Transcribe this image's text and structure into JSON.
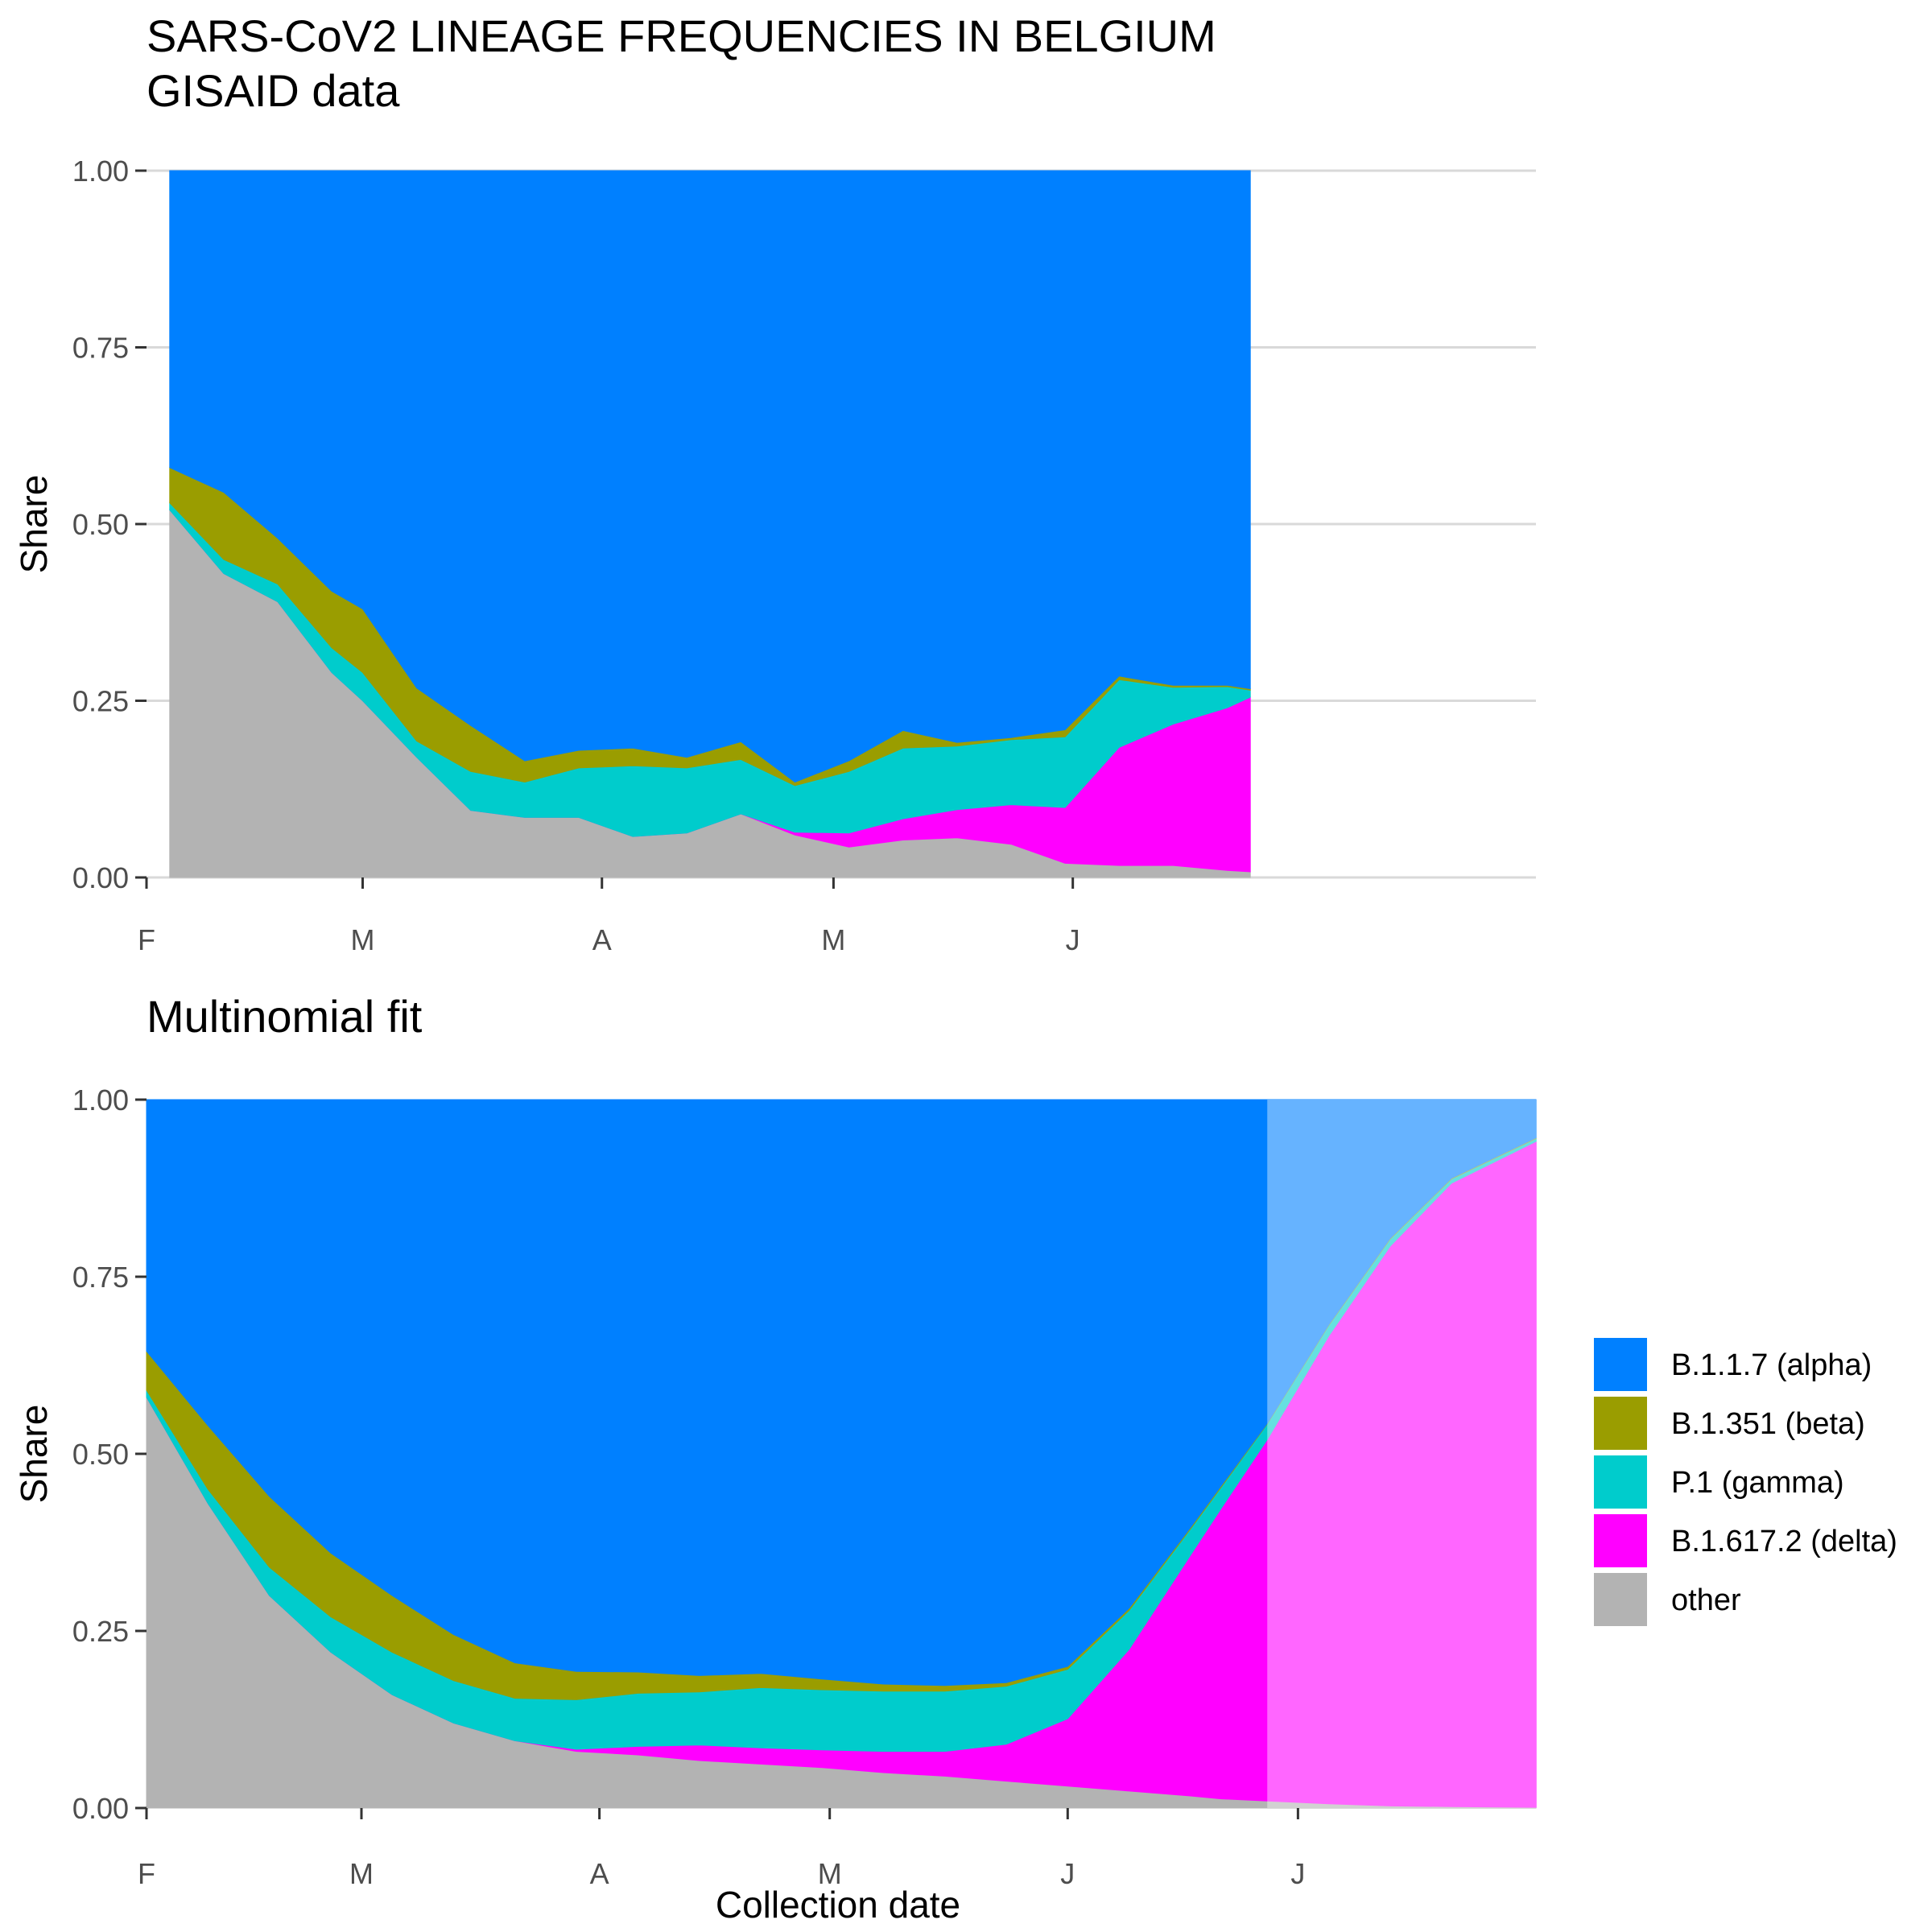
{
  "title": "SARS-CoV2 LINEAGE FREQUENCIES IN BELGIUM",
  "subtitle": "GISAID data",
  "legend": {
    "items": [
      {
        "label": "B.1.1.7 (alpha)",
        "color": "#0080FF"
      },
      {
        "label": "B.1.351 (beta)",
        "color": "#9A9D00"
      },
      {
        "label": "P.1 (gamma)",
        "color": "#00CCCC"
      },
      {
        "label": "B.1.617.2 (delta)",
        "color": "#FF00FF"
      },
      {
        "label": "other",
        "color": "#B3B3B3"
      }
    ]
  },
  "chart_data": [
    {
      "type": "area",
      "stacking": "fill",
      "title": "",
      "xlabel": "",
      "ylabel": "Share",
      "x_unit": "day of 2021",
      "xlim": [
        32,
        212
      ],
      "ylim": [
        0,
        1
      ],
      "y_ticks": [
        "0.00",
        "0.25",
        "0.50",
        "0.75",
        "1.00"
      ],
      "x_ticks": [
        {
          "value": 32,
          "label": "F"
        },
        {
          "value": 60,
          "label": "M"
        },
        {
          "value": 91,
          "label": "A"
        },
        {
          "value": 121,
          "label": "M"
        },
        {
          "value": 152,
          "label": "J"
        }
      ],
      "grid": true,
      "x": [
        35,
        42,
        49,
        56,
        60,
        67,
        74,
        81,
        88,
        95,
        102,
        109,
        116,
        123,
        130,
        137,
        144,
        151,
        158,
        165,
        172,
        175
      ],
      "series": [
        {
          "name": "other",
          "color": "#B3B3B3",
          "values": [
            0.52,
            0.43,
            0.39,
            0.29,
            0.25,
            0.17,
            0.095,
            0.085,
            0.085,
            0.058,
            0.063,
            0.09,
            0.06,
            0.043,
            0.053,
            0.056,
            0.047,
            0.02,
            0.017,
            0.017,
            0.01,
            0.008
          ]
        },
        {
          "name": "B.1.617.2 (delta)",
          "color": "#FF00FF",
          "values": [
            0,
            0,
            0,
            0,
            0,
            0,
            0,
            0,
            0,
            0,
            0,
            0,
            0.004,
            0.02,
            0.03,
            0.04,
            0.056,
            0.079,
            0.167,
            0.2,
            0.23,
            0.247
          ]
        },
        {
          "name": "P.1 (gamma)",
          "color": "#00CCCC",
          "values": [
            0.01,
            0.02,
            0.025,
            0.035,
            0.04,
            0.023,
            0.055,
            0.05,
            0.07,
            0.1,
            0.092,
            0.077,
            0.066,
            0.087,
            0.1,
            0.09,
            0.092,
            0.1,
            0.096,
            0.052,
            0.03,
            0.01
          ]
        },
        {
          "name": "B.1.351 (beta)",
          "color": "#9A9D00",
          "values": [
            0.05,
            0.095,
            0.065,
            0.08,
            0.09,
            0.075,
            0.065,
            0.03,
            0.025,
            0.025,
            0.015,
            0.025,
            0.005,
            0.015,
            0.025,
            0.005,
            0.003,
            0.01,
            0.005,
            0.003,
            0.002,
            0.002
          ]
        },
        {
          "name": "B.1.1.7 (alpha)",
          "color": "#0080FF",
          "values": [
            0.42,
            0.455,
            0.52,
            0.595,
            0.62,
            0.732,
            0.785,
            0.835,
            0.82,
            0.817,
            0.83,
            0.808,
            0.865,
            0.835,
            0.792,
            0.809,
            0.802,
            0.791,
            0.715,
            0.728,
            0.728,
            0.733
          ]
        }
      ]
    },
    {
      "type": "area",
      "stacking": "fill",
      "title": "Multinomial fit",
      "xlabel": "Collection date",
      "ylabel": "Share",
      "x_unit": "day of 2021",
      "xlim": [
        32,
        213
      ],
      "ylim": [
        0,
        1
      ],
      "y_ticks": [
        "0.00",
        "0.25",
        "0.50",
        "0.75",
        "1.00"
      ],
      "x_ticks": [
        {
          "value": 32,
          "label": "F"
        },
        {
          "value": 60,
          "label": "M"
        },
        {
          "value": 91,
          "label": "A"
        },
        {
          "value": 121,
          "label": "M"
        },
        {
          "value": 152,
          "label": "J"
        },
        {
          "value": 182,
          "label": "J"
        }
      ],
      "grid": false,
      "projection_start": 178,
      "x": [
        32,
        40,
        48,
        56,
        64,
        72,
        80,
        88,
        96,
        104,
        112,
        120,
        128,
        136,
        144,
        152,
        160,
        168,
        172,
        178,
        186,
        194,
        202,
        213
      ],
      "series": [
        {
          "name": "other",
          "color": "#B3B3B3",
          "values": [
            0.58,
            0.43,
            0.3,
            0.22,
            0.16,
            0.12,
            0.095,
            0.08,
            0.075,
            0.067,
            0.062,
            0.057,
            0.05,
            0.045,
            0.038,
            0.031,
            0.024,
            0.017,
            0.013,
            0.01,
            0.006,
            0.003,
            0.002,
            0.001
          ]
        },
        {
          "name": "B.1.617.2 (delta)",
          "color": "#FF00FF",
          "values": [
            0,
            0,
            0,
            0,
            0,
            0,
            0,
            0.003,
            0.012,
            0.022,
            0.023,
            0.025,
            0.03,
            0.035,
            0.052,
            0.095,
            0.2,
            0.34,
            0.41,
            0.51,
            0.66,
            0.79,
            0.88,
            0.94
          ]
        },
        {
          "name": "P.1 (gamma)",
          "color": "#00CCCC",
          "values": [
            0.01,
            0.02,
            0.04,
            0.05,
            0.06,
            0.06,
            0.06,
            0.07,
            0.075,
            0.075,
            0.085,
            0.085,
            0.085,
            0.085,
            0.082,
            0.07,
            0.055,
            0.037,
            0.03,
            0.022,
            0.015,
            0.01,
            0.006,
            0.004
          ]
        },
        {
          "name": "B.1.351 (beta)",
          "color": "#9A9D00",
          "values": [
            0.055,
            0.09,
            0.1,
            0.09,
            0.08,
            0.065,
            0.05,
            0.04,
            0.03,
            0.023,
            0.02,
            0.015,
            0.01,
            0.008,
            0.005,
            0.004,
            0.003,
            0.002,
            0.002,
            0.001,
            0.001,
            0.001,
            0.001,
            0.001
          ]
        },
        {
          "name": "B.1.1.7 (alpha)",
          "color": "#0080FF",
          "values": [
            0.355,
            0.46,
            0.56,
            0.64,
            0.7,
            0.755,
            0.795,
            0.807,
            0.808,
            0.813,
            0.81,
            0.818,
            0.825,
            0.827,
            0.823,
            0.8,
            0.718,
            0.604,
            0.545,
            0.457,
            0.318,
            0.196,
            0.111,
            0.054
          ]
        }
      ]
    }
  ]
}
